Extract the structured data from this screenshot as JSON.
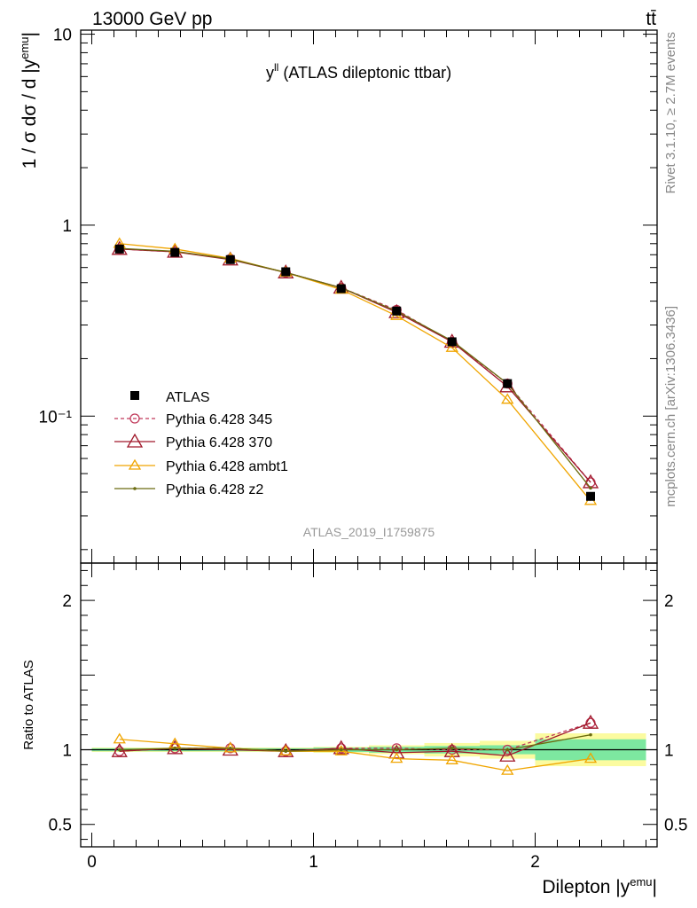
{
  "header": {
    "energy_label": "13000 GeV pp",
    "process_label": "tt̄"
  },
  "side_labels": {
    "rivet": "Rivet 3.1.10, ≥ 2.7M events",
    "mcplots": "mcplots.cern.ch [arXiv:1306.3436]"
  },
  "plot_title": "y",
  "plot_title_sup": "ll",
  "plot_title_rest": " (ATLAS dileptonic ttbar)",
  "analysis_id": "ATLAS_2019_I1759875",
  "colors": {
    "data": "#000000",
    "p345": "#c0395a",
    "p370": "#a0182a",
    "ambt1": "#f0a500",
    "z2": "#6b6b10",
    "band_inner": "#7de8a0",
    "band_outer": "#fbfba0"
  },
  "chart_data": [
    {
      "type": "line",
      "panel": "main",
      "ylabel": "1 / σ  dσ / d |y",
      "ylabel_sup": "emu",
      "ylabel_end": "|",
      "yscale": "log",
      "ylim": [
        0.017,
        10.5
      ],
      "xlim": [
        -0.05,
        2.55
      ],
      "yticks": [
        "10⁻¹",
        "1",
        "10"
      ],
      "x": [
        0.125,
        0.375,
        0.625,
        0.875,
        1.125,
        1.375,
        1.625,
        1.875,
        2.25
      ],
      "legend": [
        "ATLAS",
        "Pythia 6.428 345",
        "Pythia 6.428 370",
        "Pythia 6.428 ambt1",
        "Pythia 6.428 z2"
      ],
      "series": [
        {
          "name": "ATLAS",
          "values": [
            0.75,
            0.72,
            0.66,
            0.57,
            0.465,
            0.355,
            0.245,
            0.148,
            0.038
          ]
        },
        {
          "name": "Pythia 6.428 345",
          "values": [
            0.75,
            0.725,
            0.665,
            0.565,
            0.47,
            0.36,
            0.245,
            0.148,
            0.045
          ]
        },
        {
          "name": "Pythia 6.428 370",
          "values": [
            0.75,
            0.725,
            0.66,
            0.565,
            0.47,
            0.35,
            0.245,
            0.143,
            0.045
          ]
        },
        {
          "name": "Pythia 6.428 ambt1",
          "values": [
            0.8,
            0.75,
            0.67,
            0.565,
            0.46,
            0.335,
            0.228,
            0.122,
            0.036
          ]
        },
        {
          "name": "Pythia 6.428 z2",
          "values": [
            0.755,
            0.73,
            0.665,
            0.565,
            0.47,
            0.355,
            0.248,
            0.148,
            0.042
          ]
        }
      ]
    },
    {
      "type": "line",
      "panel": "ratio",
      "ylabel": "Ratio to ATLAS",
      "xlabel": "Dilepton |y",
      "xlabel_sup": "emu",
      "xlabel_end": "|",
      "ylim": [
        0.35,
        2.25
      ],
      "xlim": [
        -0.05,
        2.55
      ],
      "yticks": [
        0.5,
        1,
        2
      ],
      "xticks": [
        0,
        1,
        2
      ],
      "x": [
        0.125,
        0.375,
        0.625,
        0.875,
        1.125,
        1.375,
        1.625,
        1.875,
        2.25
      ],
      "band_edges": [
        0,
        0.25,
        0.5,
        0.75,
        1.0,
        1.25,
        1.5,
        1.75,
        2.0,
        2.5
      ],
      "band_inner": [
        0.01,
        0.01,
        0.01,
        0.01,
        0.015,
        0.02,
        0.025,
        0.03,
        0.07
      ],
      "band_outer": [
        0.015,
        0.015,
        0.015,
        0.015,
        0.02,
        0.03,
        0.045,
        0.06,
        0.11
      ],
      "series": [
        {
          "name": "Pythia 6.428 345",
          "values": [
            0.99,
            1.01,
            1.01,
            0.99,
            1.01,
            1.01,
            1.0,
            1.0,
            1.18
          ]
        },
        {
          "name": "Pythia 6.428 370",
          "values": [
            0.99,
            1.01,
            1.0,
            0.99,
            1.01,
            0.98,
            0.99,
            0.96,
            1.18
          ]
        },
        {
          "name": "Pythia 6.428 ambt1",
          "values": [
            1.07,
            1.04,
            1.01,
            0.99,
            0.99,
            0.94,
            0.93,
            0.86,
            0.94
          ]
        },
        {
          "name": "Pythia 6.428 z2",
          "values": [
            1.0,
            1.01,
            1.01,
            0.99,
            1.0,
            1.0,
            1.01,
            1.0,
            1.1
          ]
        }
      ]
    }
  ]
}
